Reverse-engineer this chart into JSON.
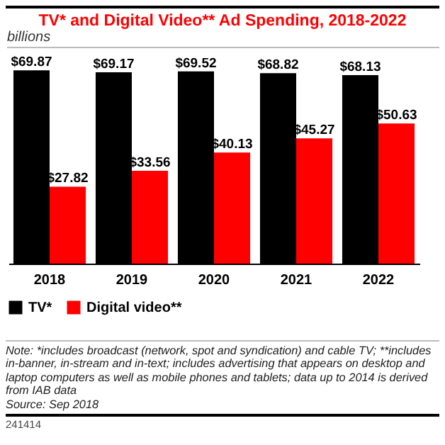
{
  "chart_data": {
    "type": "bar",
    "title": "TV* and Digital Video** Ad Spending, 2018-2022",
    "subtitle": "billions",
    "categories": [
      "2018",
      "2019",
      "2020",
      "2021",
      "2022"
    ],
    "series": [
      {
        "name": "TV*",
        "color": "#000000",
        "values": [
          69.87,
          69.17,
          69.52,
          68.82,
          68.13
        ],
        "value_labels": [
          "$69.87",
          "$69.17",
          "$69.52",
          "$68.82",
          "$68.13"
        ]
      },
      {
        "name": "Digital video**",
        "color": "#ff0000",
        "values": [
          27.82,
          33.56,
          40.13,
          45.27,
          50.63
        ],
        "value_labels": [
          "$27.82",
          "$33.56",
          "$40.13",
          "$45.27",
          "$50.63"
        ]
      }
    ],
    "legend": "bottom left",
    "grid": false,
    "annotations": [
      "Note: *includes broadcast (network, spot and syndication) and cable TV; **includes in-banner, in-stream and in-text; includes advertising that appears on desktop and laptop computers as well as mobile phones and tablets; data up to 2014 is derived from IAB data",
      "Source: Sep 2018",
      "241414"
    ]
  }
}
